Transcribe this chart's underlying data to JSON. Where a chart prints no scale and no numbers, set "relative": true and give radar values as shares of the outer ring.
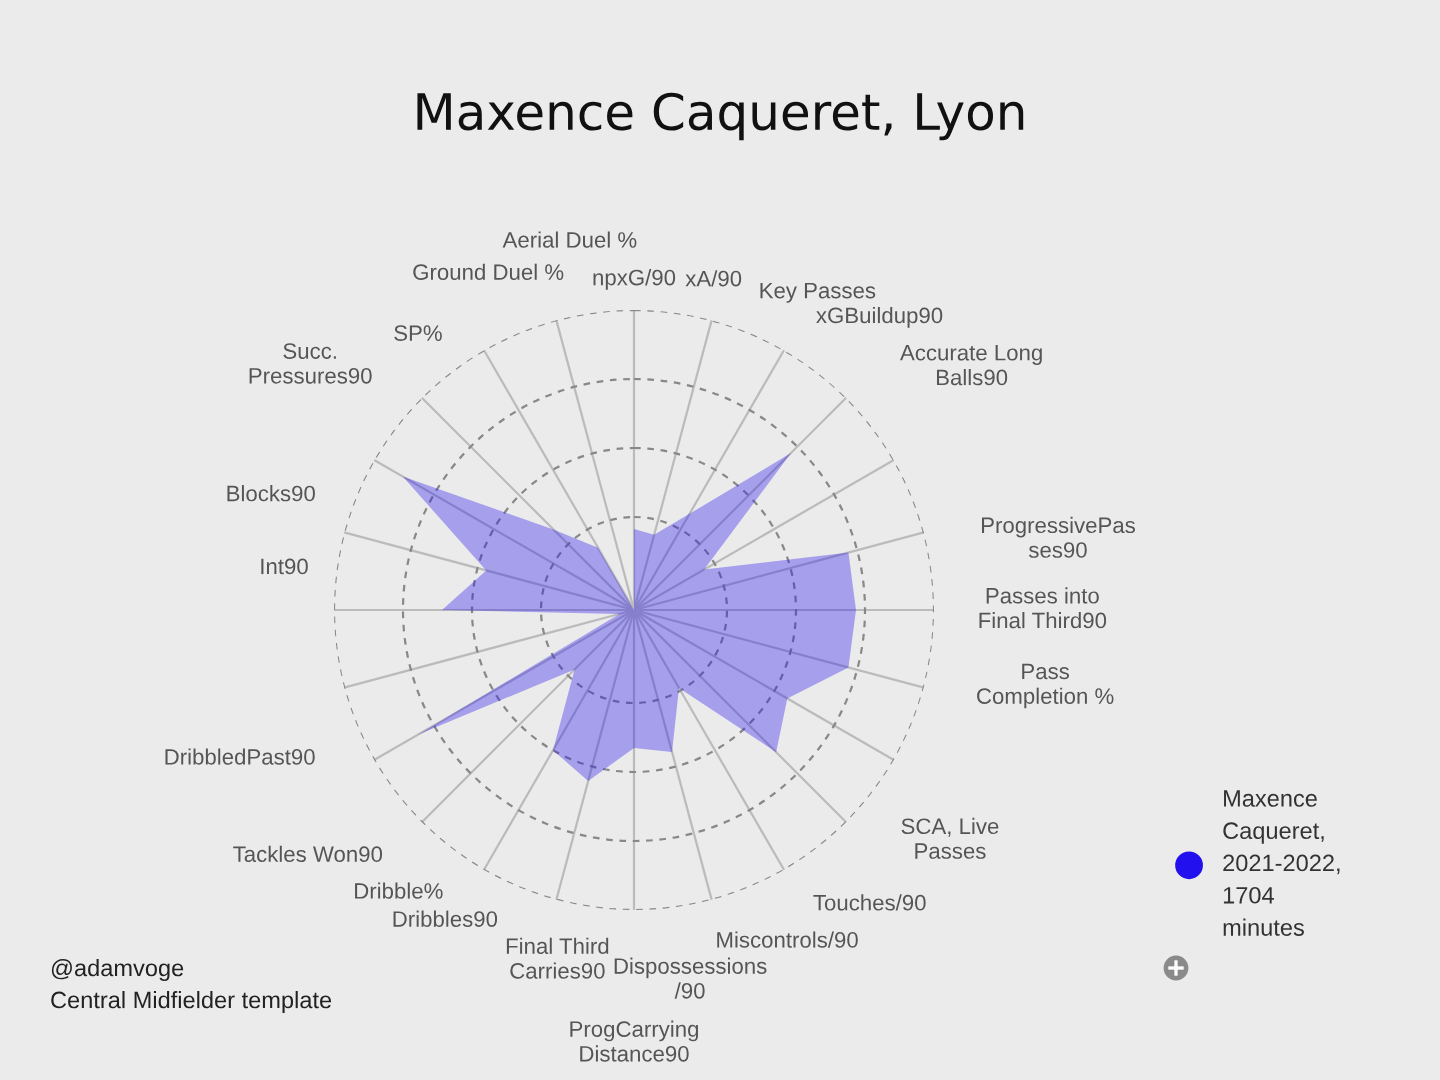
{
  "chart_data": {
    "type": "radar",
    "title": "Maxence Caqueret, Lyon",
    "relative": true,
    "grid": true,
    "legend": "right",
    "categories": [
      "npxG/90",
      "xA/90",
      "Key Passes",
      "xGBuildup90",
      "Accurate Long Balls90",
      "ProgressivePasses90",
      "Passes into Final Third90",
      "Pass Completion %",
      "SCA, Live Passes",
      "Touches/90",
      "Miscontrols/90",
      "Dispossessions /90",
      "ProgCarrying Distance90",
      "Final Third Carries90",
      "Dribbles90",
      "Dribble%",
      "Tackles Won90",
      "DribbledPast90",
      "Int90",
      "Blocks90",
      "Succ. Pressures90",
      "SP%",
      "Ground Duel %",
      "Aerial Duel %"
    ],
    "series": [
      {
        "name": "Maxence Caqueret, 2021-2022, 1704 minutes",
        "color": "#2211ee",
        "values": [
          0.27,
          0.26,
          0.37,
          0.74,
          0.27,
          0.74,
          0.74,
          0.74,
          0.59,
          0.67,
          0.3,
          0.49,
          0.46,
          0.59,
          0.54,
          0.28,
          0.83,
          0.05,
          0.64,
          0.51,
          0.89,
          0.38,
          0.24,
          0
        ]
      }
    ],
    "annotations": [
      "@adamvoge",
      "Central Midfielder template"
    ]
  }
}
